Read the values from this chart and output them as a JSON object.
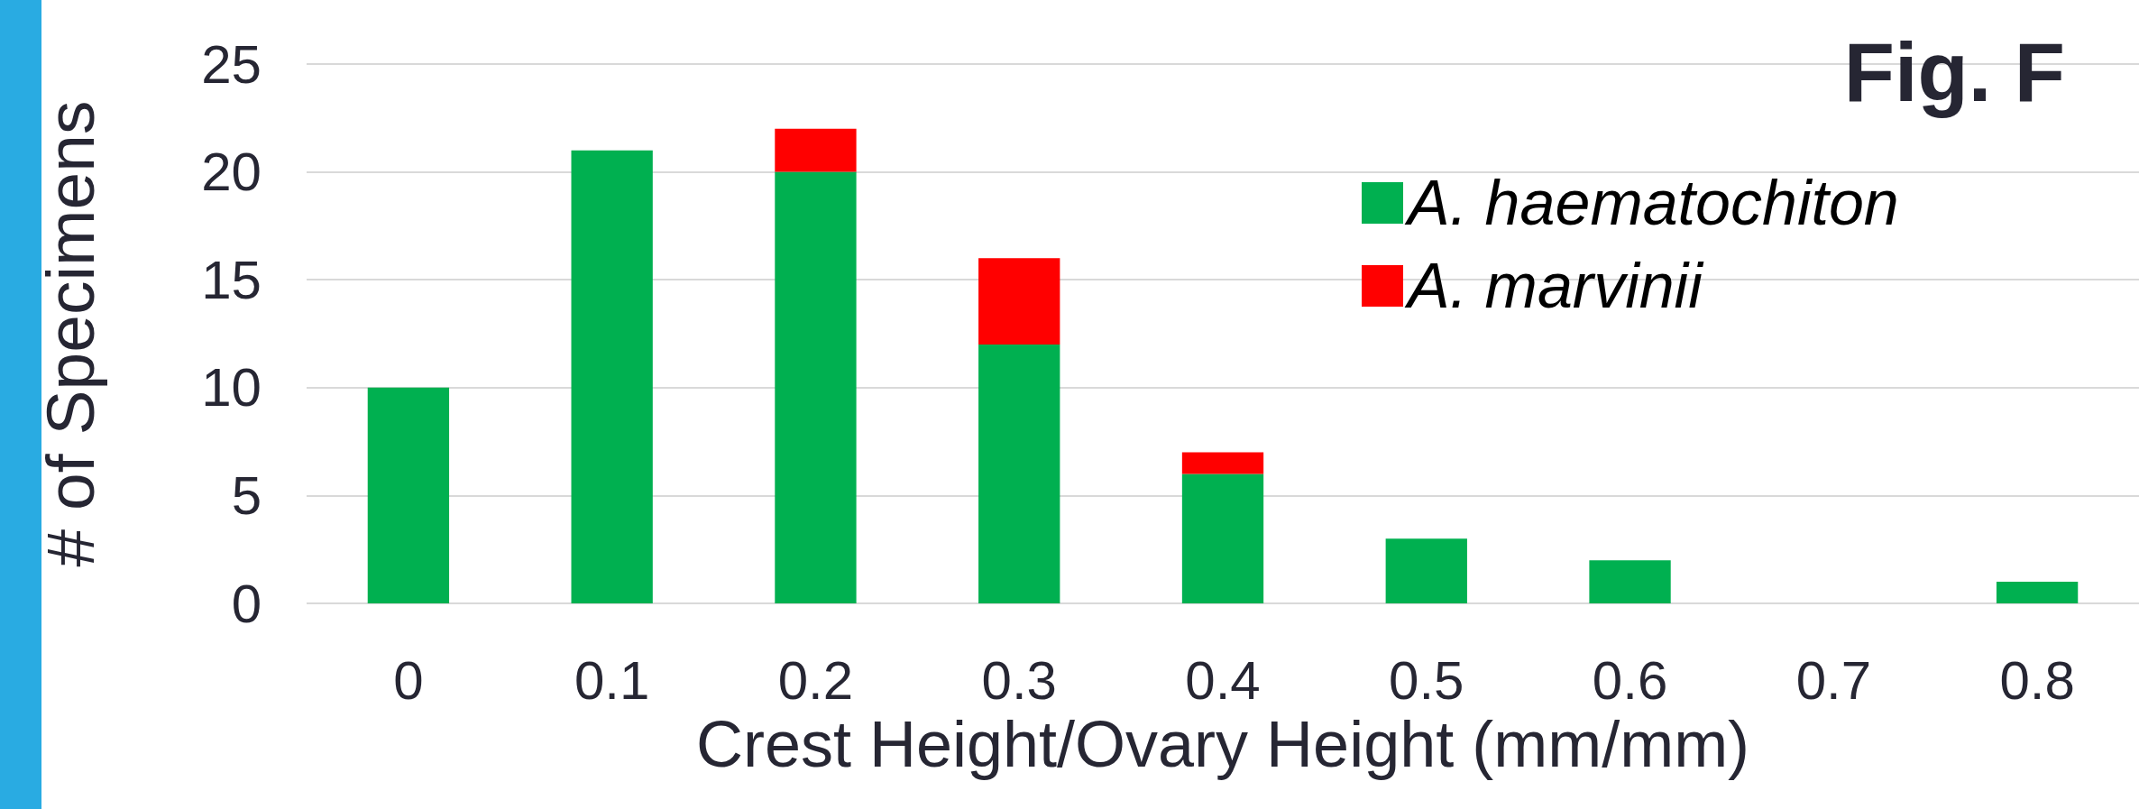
{
  "chart_data": {
    "type": "bar",
    "stacked": true,
    "xlabel": "Crest Height/Ovary Height (mm/mm)",
    "ylabel": "# of Specimens",
    "annotations": [
      "Fig. F"
    ],
    "categories": [
      "0",
      "0.1",
      "0.2",
      "0.3",
      "0.4",
      "0.5",
      "0.6",
      "0.7",
      "0.8"
    ],
    "series": [
      {
        "name": "A. haematochiton",
        "color": "#00b050",
        "values": [
          10,
          21,
          20,
          12,
          6,
          3,
          2,
          null,
          1
        ]
      },
      {
        "name": "A. marvinii",
        "color": "#ff0000",
        "values": [
          null,
          null,
          2,
          4,
          1,
          null,
          null,
          null,
          null
        ]
      }
    ],
    "ylim": [
      0,
      25
    ],
    "yticks": [
      0,
      5,
      10,
      15,
      20,
      25
    ],
    "grid": "y",
    "legend": "top right"
  }
}
